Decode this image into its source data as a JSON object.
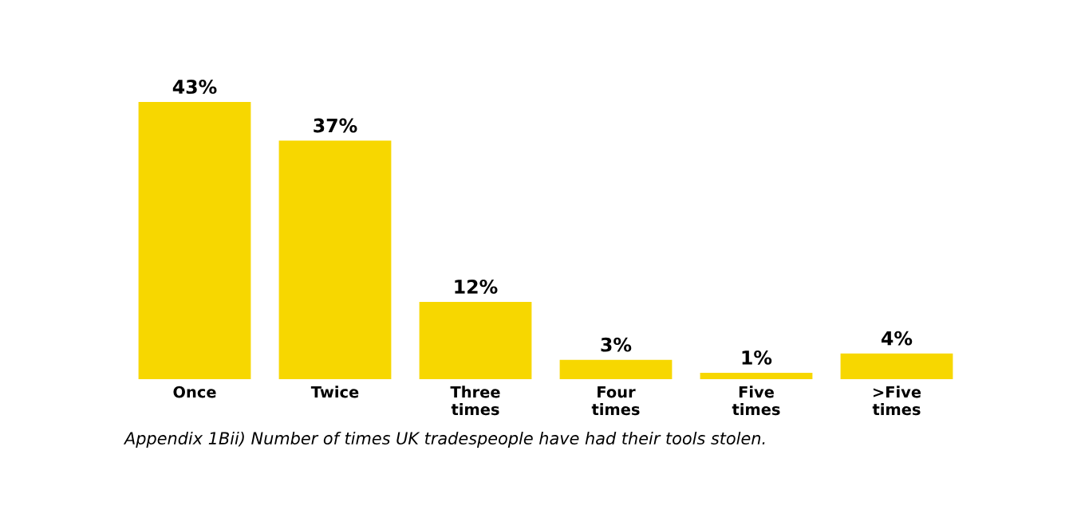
{
  "chart_data": {
    "type": "bar",
    "categories": [
      "Once",
      "Twice",
      "Three times",
      "Four times",
      "Five times",
      ">Five times"
    ],
    "values": [
      43,
      37,
      12,
      3,
      1,
      4
    ],
    "value_labels": [
      "43%",
      "37%",
      "12%",
      "3%",
      "1%",
      "4%"
    ],
    "color": "#f7d700",
    "grid": false,
    "legend": false,
    "annotations": [
      "Appendix 1Bii) Number of times UK tradespeople have had their tools stolen."
    ]
  }
}
